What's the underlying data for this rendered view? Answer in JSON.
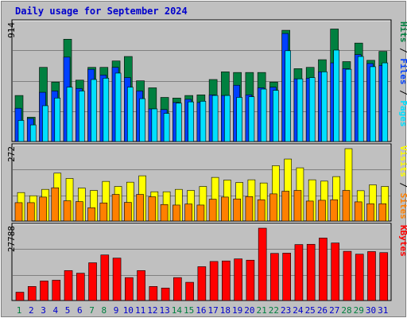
{
  "title": "Daily usage for September 2024",
  "colors": {
    "hits": "#008040",
    "files": "#0040ff",
    "pages": "#00e0ff",
    "visits": "#ffff00",
    "sites": "#ff8000",
    "kbytes": "#ff0000",
    "weekend_day": "#008040",
    "weekday": "#0000cc"
  },
  "chart_data": [
    {
      "type": "bar",
      "name": "hits-files-pages",
      "ymax_label": "914",
      "ylim": [
        0,
        914
      ],
      "legend": [
        "Pages",
        "Files",
        "Hits"
      ],
      "categories": [
        "1",
        "2",
        "3",
        "4",
        "5",
        "6",
        "7",
        "8",
        "9",
        "10",
        "11",
        "12",
        "13",
        "14",
        "15",
        "16",
        "17",
        "18",
        "19",
        "20",
        "21",
        "22",
        "23",
        "24",
        "25",
        "26",
        "27",
        "28",
        "29",
        "30",
        "31"
      ],
      "series": [
        {
          "name": "Hits",
          "values": [
            360,
            190,
            580,
            465,
            800,
            480,
            580,
            580,
            630,
            665,
            475,
            420,
            345,
            340,
            360,
            365,
            485,
            545,
            540,
            540,
            540,
            465,
            870,
            570,
            580,
            640,
            880,
            625,
            770,
            635,
            705
          ]
        },
        {
          "name": "Files",
          "values": [
            260,
            180,
            385,
            395,
            660,
            415,
            565,
            520,
            580,
            500,
            395,
            255,
            250,
            305,
            330,
            305,
            365,
            360,
            440,
            365,
            420,
            425,
            845,
            490,
            495,
            545,
            615,
            570,
            680,
            610,
            595
          ]
        },
        {
          "name": "Pages",
          "values": [
            165,
            130,
            280,
            340,
            425,
            395,
            485,
            495,
            535,
            425,
            335,
            255,
            220,
            300,
            310,
            315,
            360,
            360,
            345,
            350,
            410,
            400,
            710,
            490,
            500,
            545,
            715,
            565,
            665,
            585,
            615
          ]
        }
      ]
    },
    {
      "type": "bar",
      "name": "visits-sites",
      "ymax_label": "272",
      "ylim": [
        0,
        272
      ],
      "legend": [
        "Sites",
        "Visits"
      ],
      "categories": [
        "1",
        "2",
        "3",
        "4",
        "5",
        "6",
        "7",
        "8",
        "9",
        "10",
        "11",
        "12",
        "13",
        "14",
        "15",
        "16",
        "17",
        "18",
        "19",
        "20",
        "21",
        "22",
        "23",
        "24",
        "25",
        "26",
        "27",
        "28",
        "29",
        "30",
        "31"
      ],
      "series": [
        {
          "name": "Visits",
          "values": [
            107,
            95,
            119,
            180,
            160,
            124,
            115,
            149,
            130,
            146,
            170,
            110,
            110,
            119,
            115,
            130,
            164,
            154,
            145,
            155,
            143,
            208,
            233,
            200,
            155,
            150,
            167,
            272,
            114,
            136,
            130
          ]
        },
        {
          "name": "Sites",
          "values": [
            69,
            69,
            90,
            125,
            76,
            73,
            50,
            68,
            100,
            70,
            100,
            91,
            62,
            60,
            64,
            60,
            82,
            90,
            83,
            92,
            80,
            102,
            112,
            115,
            75,
            78,
            80,
            115,
            72,
            65,
            65
          ]
        }
      ]
    },
    {
      "type": "bar",
      "name": "kbytes",
      "ymax_label": "27788",
      "ylim": [
        0,
        27788
      ],
      "legend": [
        "KBytes"
      ],
      "categories": [
        "1",
        "2",
        "3",
        "4",
        "5",
        "6",
        "7",
        "8",
        "9",
        "10",
        "11",
        "12",
        "13",
        "14",
        "15",
        "16",
        "17",
        "18",
        "19",
        "20",
        "21",
        "22",
        "23",
        "24",
        "25",
        "26",
        "27",
        "28",
        "29",
        "30",
        "31"
      ],
      "series": [
        {
          "name": "KBytes",
          "values": [
            3200,
            5400,
            7500,
            7800,
            11500,
            10500,
            14500,
            17500,
            16300,
            8800,
            11500,
            5400,
            4800,
            8800,
            7000,
            13000,
            15000,
            15200,
            16000,
            15500,
            27788,
            18100,
            18200,
            21500,
            21600,
            24000,
            22100,
            18900,
            17800,
            18800,
            18400
          ]
        }
      ]
    }
  ],
  "x_labels": [
    "1",
    "2",
    "3",
    "4",
    "5",
    "6",
    "7",
    "8",
    "9",
    "10",
    "11",
    "12",
    "13",
    "14",
    "15",
    "16",
    "17",
    "18",
    "19",
    "20",
    "21",
    "22",
    "23",
    "24",
    "25",
    "26",
    "27",
    "28",
    "29",
    "30",
    "31"
  ],
  "weekend_days": [
    1,
    7,
    8,
    14,
    15,
    21,
    22,
    28,
    29
  ]
}
